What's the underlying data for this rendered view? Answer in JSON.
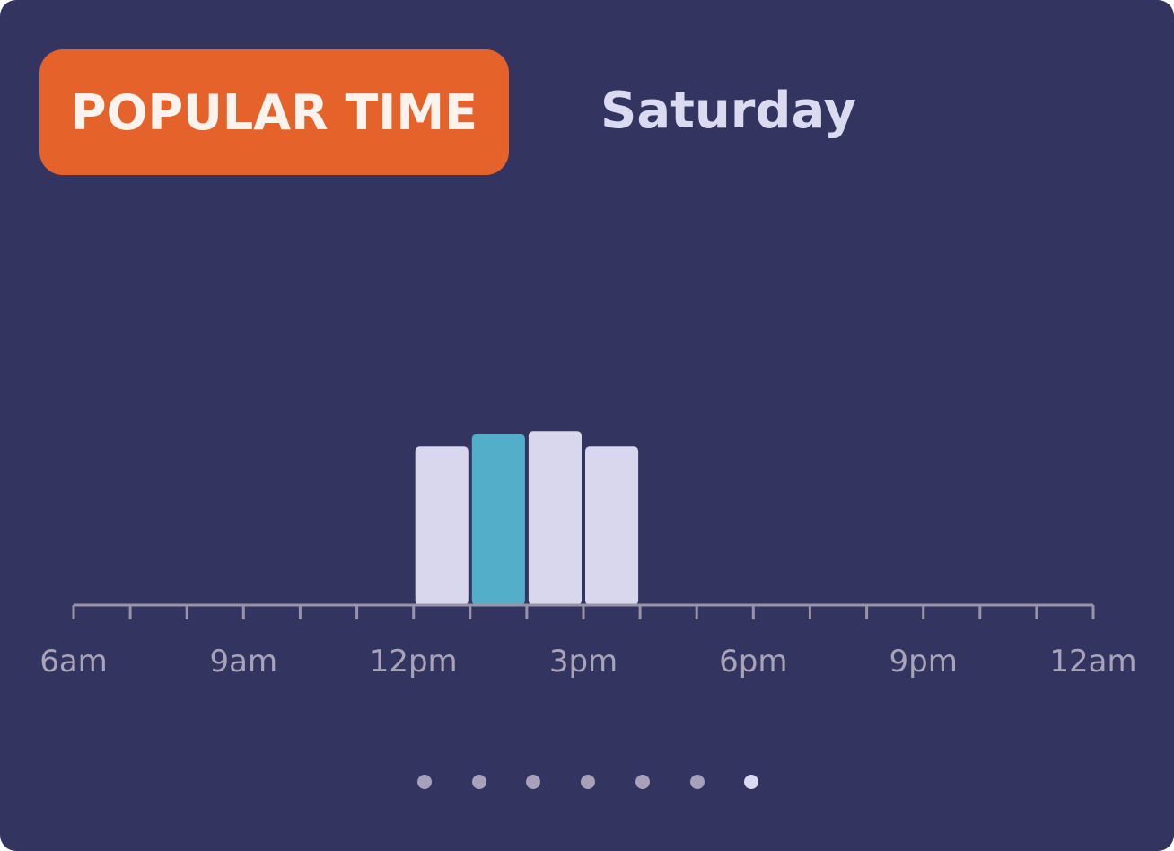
{
  "header": {
    "badge_label": "POPULAR TIME",
    "day_label": "Saturday"
  },
  "colors": {
    "card_background": "#343461",
    "badge_background": "#e6622b",
    "bar_default": "#d8d7ee",
    "bar_current": "#53afc9",
    "axis": "#9893a6",
    "tick_label": "#a7a3b8",
    "dot_inactive": "#a7a2b9",
    "dot_active": "#dcdaf2"
  },
  "chart_data": {
    "type": "bar",
    "x_unit": "hour of day",
    "x_range_hours": [
      6,
      24
    ],
    "tick_labels": [
      "6am",
      "9am",
      "12pm",
      "3pm",
      "6pm",
      "9pm",
      "12am"
    ],
    "ylim": [
      0,
      100
    ],
    "bars": [
      {
        "start_hour": 12,
        "end_hour": 13,
        "value": 52,
        "current": false
      },
      {
        "start_hour": 13,
        "end_hour": 14,
        "value": 56,
        "current": true
      },
      {
        "start_hour": 14,
        "end_hour": 15,
        "value": 57,
        "current": false
      },
      {
        "start_hour": 15,
        "end_hour": 16,
        "value": 52,
        "current": false
      }
    ]
  },
  "pagination": {
    "count": 7,
    "active_index": 6
  }
}
